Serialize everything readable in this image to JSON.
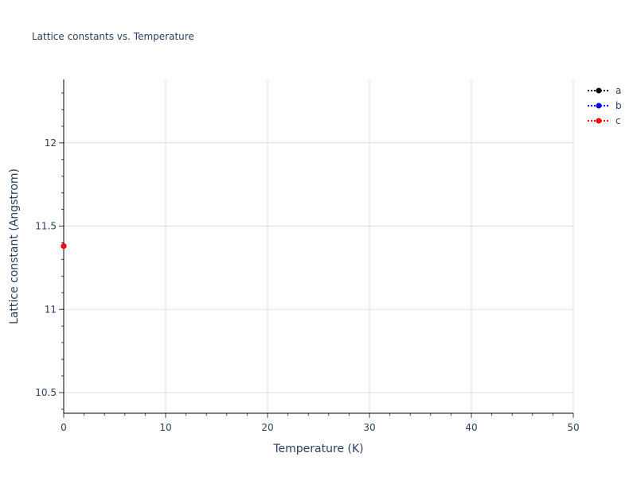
{
  "chart_data": {
    "type": "line",
    "title": "Lattice constants vs. Temperature",
    "xlabel": "Temperature (K)",
    "ylabel": "Lattice constant (Angstrom)",
    "xlim": [
      0,
      50
    ],
    "ylim": [
      10.376,
      12.381
    ],
    "xticks": [
      0,
      10,
      20,
      30,
      40,
      50
    ],
    "xtick_labels": [
      "0",
      "10",
      "20",
      "30",
      "40",
      "50"
    ],
    "yticks": [
      10.5,
      11,
      11.5,
      12
    ],
    "ytick_labels": [
      "10.5",
      "11",
      "11.5",
      "12"
    ],
    "grid": true,
    "legend_position": "top-right",
    "series": [
      {
        "name": "a",
        "color": "#000000",
        "line": "dotted",
        "marker": "circle",
        "x": [
          0
        ],
        "y": [
          11.38
        ]
      },
      {
        "name": "b",
        "color": "#0000ff",
        "line": "dotted",
        "marker": "circle",
        "x": [
          0
        ],
        "y": [
          11.38
        ]
      },
      {
        "name": "c",
        "color": "#ff0000",
        "line": "dotted",
        "marker": "circle",
        "x": [
          0
        ],
        "y": [
          11.38
        ]
      }
    ]
  }
}
